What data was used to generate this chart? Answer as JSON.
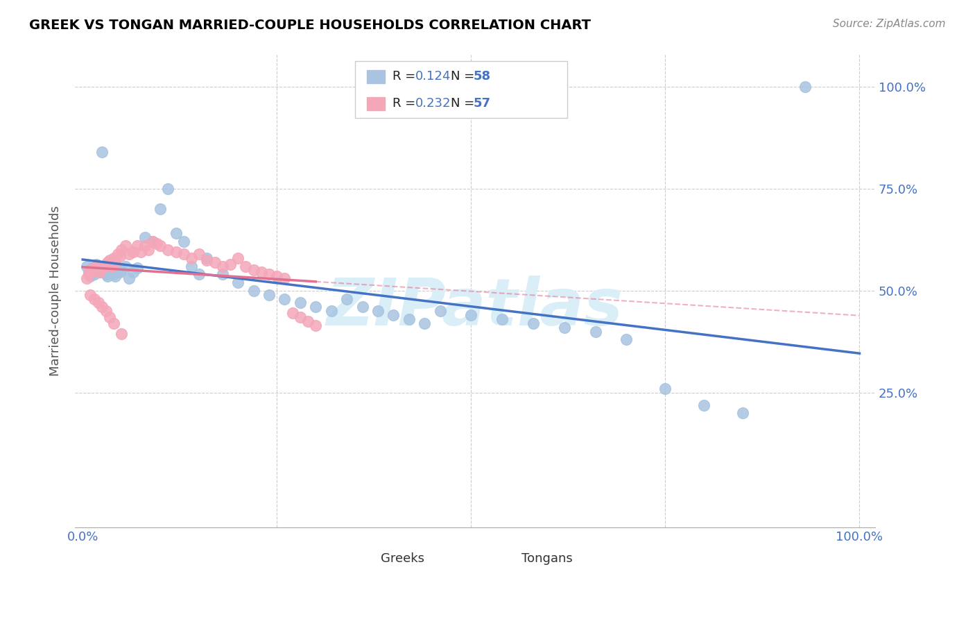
{
  "title": "GREEK VS TONGAN MARRIED-COUPLE HOUSEHOLDS CORRELATION CHART",
  "source": "Source: ZipAtlas.com",
  "ylabel": "Married-couple Households",
  "xlim": [
    0,
    1
  ],
  "ylim": [
    0,
    1
  ],
  "legend_greek_R": "0.124",
  "legend_greek_N": "58",
  "legend_tongan_R": "0.232",
  "legend_tongan_N": "57",
  "greek_color": "#a8c4e0",
  "tongan_color": "#f4a7b9",
  "greek_line_color": "#4472c4",
  "tongan_line_color": "#e07090",
  "background_color": "#ffffff",
  "title_color": "#000000",
  "source_color": "#888888",
  "axis_label_color": "#555555",
  "tick_label_color": "#4472c4",
  "greek_x": [
    0.005,
    0.008,
    0.01,
    0.012,
    0.015,
    0.018,
    0.02,
    0.022,
    0.025,
    0.028,
    0.03,
    0.032,
    0.035,
    0.038,
    0.04,
    0.042,
    0.045,
    0.048,
    0.05,
    0.055,
    0.06,
    0.065,
    0.07,
    0.08,
    0.09,
    0.1,
    0.11,
    0.12,
    0.13,
    0.14,
    0.15,
    0.16,
    0.18,
    0.2,
    0.22,
    0.24,
    0.26,
    0.28,
    0.3,
    0.32,
    0.34,
    0.36,
    0.38,
    0.4,
    0.42,
    0.44,
    0.46,
    0.5,
    0.54,
    0.58,
    0.62,
    0.66,
    0.7,
    0.75,
    0.8,
    0.85,
    0.93,
    0.025
  ],
  "greek_y": [
    0.56,
    0.545,
    0.535,
    0.555,
    0.54,
    0.565,
    0.55,
    0.545,
    0.56,
    0.555,
    0.54,
    0.535,
    0.565,
    0.545,
    0.54,
    0.535,
    0.555,
    0.545,
    0.55,
    0.56,
    0.53,
    0.545,
    0.555,
    0.63,
    0.62,
    0.7,
    0.75,
    0.64,
    0.62,
    0.56,
    0.54,
    0.58,
    0.54,
    0.52,
    0.5,
    0.49,
    0.48,
    0.47,
    0.46,
    0.45,
    0.48,
    0.46,
    0.45,
    0.44,
    0.43,
    0.42,
    0.45,
    0.44,
    0.43,
    0.42,
    0.41,
    0.4,
    0.38,
    0.26,
    0.22,
    0.2,
    1.0,
    0.84
  ],
  "tongan_x": [
    0.005,
    0.008,
    0.01,
    0.012,
    0.015,
    0.018,
    0.02,
    0.022,
    0.025,
    0.028,
    0.03,
    0.032,
    0.035,
    0.038,
    0.04,
    0.042,
    0.045,
    0.048,
    0.05,
    0.055,
    0.06,
    0.065,
    0.07,
    0.075,
    0.08,
    0.085,
    0.09,
    0.095,
    0.1,
    0.11,
    0.12,
    0.13,
    0.14,
    0.15,
    0.16,
    0.17,
    0.18,
    0.19,
    0.2,
    0.21,
    0.22,
    0.23,
    0.24,
    0.25,
    0.26,
    0.27,
    0.28,
    0.29,
    0.3,
    0.01,
    0.015,
    0.02,
    0.025,
    0.03,
    0.035,
    0.04,
    0.05
  ],
  "tongan_y": [
    0.53,
    0.54,
    0.55,
    0.545,
    0.555,
    0.56,
    0.55,
    0.545,
    0.555,
    0.56,
    0.565,
    0.57,
    0.575,
    0.56,
    0.58,
    0.57,
    0.59,
    0.585,
    0.6,
    0.61,
    0.59,
    0.595,
    0.61,
    0.595,
    0.61,
    0.6,
    0.62,
    0.615,
    0.61,
    0.6,
    0.595,
    0.59,
    0.58,
    0.59,
    0.575,
    0.57,
    0.56,
    0.565,
    0.58,
    0.56,
    0.55,
    0.545,
    0.54,
    0.535,
    0.53,
    0.445,
    0.435,
    0.425,
    0.415,
    0.49,
    0.48,
    0.47,
    0.46,
    0.45,
    0.435,
    0.42,
    0.395
  ]
}
